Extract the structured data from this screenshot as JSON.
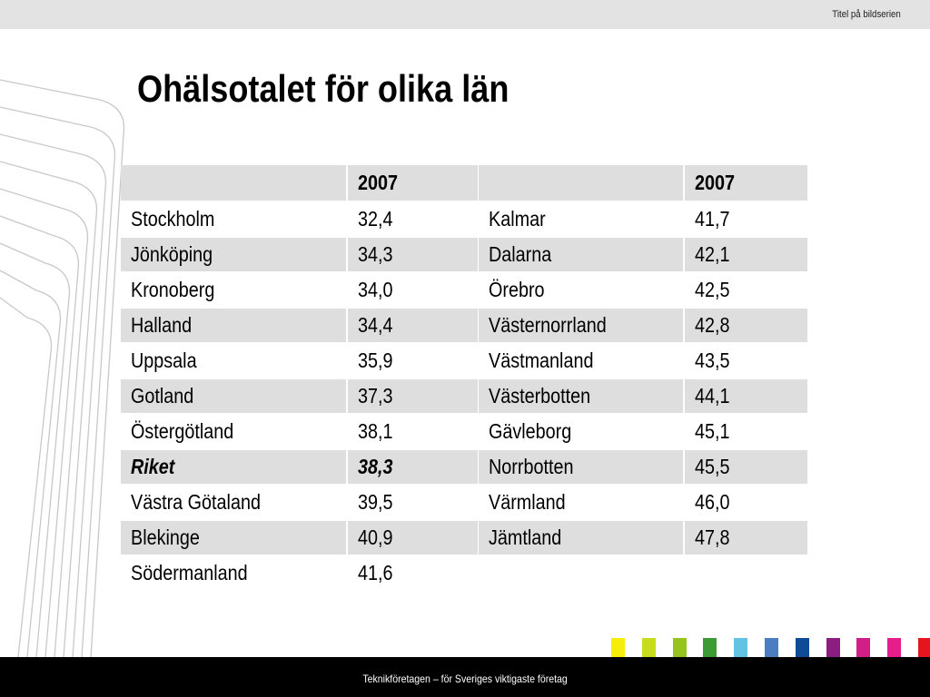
{
  "header": {
    "series_title": "Titel på bildserien"
  },
  "slide": {
    "title": "Ohälsotalet för olika län"
  },
  "tables": {
    "left": {
      "header": [
        "",
        "2007"
      ],
      "rows": [
        [
          "Stockholm",
          "32,4"
        ],
        [
          "Jönköping",
          "34,3"
        ],
        [
          "Kronoberg",
          "34,0"
        ],
        [
          "Halland",
          "34,4"
        ],
        [
          "Uppsala",
          "35,9"
        ],
        [
          "Gotland",
          "37,3"
        ],
        [
          "Östergötland",
          "38,1"
        ],
        [
          "Riket",
          "38,3"
        ],
        [
          "Västra Götaland",
          "39,5"
        ],
        [
          "Blekinge",
          "40,9"
        ],
        [
          "Södermanland",
          "41,6"
        ]
      ]
    },
    "right": {
      "header": [
        "",
        "2007"
      ],
      "rows": [
        [
          "Kalmar",
          "41,7"
        ],
        [
          "Dalarna",
          "42,1"
        ],
        [
          "Örebro",
          "42,5"
        ],
        [
          "Västernorrland",
          "42,8"
        ],
        [
          "Västmanland",
          "43,5"
        ],
        [
          "Västerbotten",
          "44,1"
        ],
        [
          "Gävleborg",
          "45,1"
        ],
        [
          "Norrbotten",
          "45,5"
        ],
        [
          "Värmland",
          "46,0"
        ],
        [
          "Jämtland",
          "47,8"
        ],
        [
          "",
          ""
        ]
      ]
    }
  },
  "footer": {
    "text": "Teknikföretagen – för Sveriges viktigaste företag"
  },
  "colors": {
    "squares": [
      "#f5ee0a",
      "#c8dc1e",
      "#96c31e",
      "#3c9b35",
      "#64c3e1",
      "#4b7dc3",
      "#0f4b96",
      "#8c1e82",
      "#d21e87",
      "#e61e8c",
      "#e6141e"
    ]
  }
}
